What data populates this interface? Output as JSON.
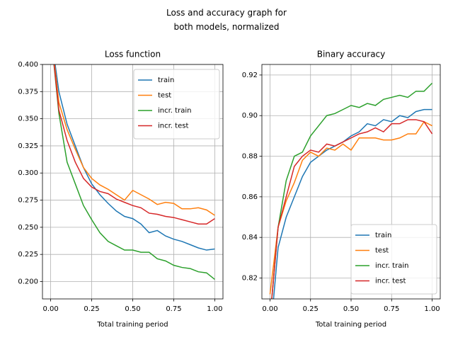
{
  "title": "Loss and accuracy graph for\nboth models, normalized",
  "chart_data": [
    {
      "type": "line",
      "title": "Loss function",
      "xlabel": "Total training period",
      "x": [
        0,
        0.05,
        0.1,
        0.15,
        0.2,
        0.25,
        0.3,
        0.35,
        0.4,
        0.45,
        0.5,
        0.55,
        0.6,
        0.65,
        0.7,
        0.75,
        0.8,
        0.85,
        0.9,
        0.95,
        1.0
      ],
      "xlim": [
        -0.05,
        1.05
      ],
      "xticks": [
        {
          "value": 0,
          "label": "0.00"
        },
        {
          "value": 0.25,
          "label": "0.25"
        },
        {
          "value": 0.5,
          "label": "0.50"
        },
        {
          "value": 0.75,
          "label": "0.75"
        },
        {
          "value": 1,
          "label": "1.00"
        }
      ],
      "ylim": [
        0.184,
        0.4
      ],
      "yticks": [
        {
          "value": 0.2,
          "label": "0.200"
        },
        {
          "value": 0.225,
          "label": "0.225"
        },
        {
          "value": 0.25,
          "label": "0.250"
        },
        {
          "value": 0.275,
          "label": "0.275"
        },
        {
          "value": 0.3,
          "label": "0.300"
        },
        {
          "value": 0.325,
          "label": "0.325"
        },
        {
          "value": 0.35,
          "label": "0.350"
        },
        {
          "value": 0.375,
          "label": "0.375"
        },
        {
          "value": 0.4,
          "label": "0.400"
        }
      ],
      "grid": true,
      "legend": "upper right",
      "series": [
        {
          "name": "train",
          "color": "#1f77b4",
          "values": [
            0.43,
            0.375,
            0.345,
            0.325,
            0.305,
            0.29,
            0.28,
            0.272,
            0.265,
            0.26,
            0.258,
            0.253,
            0.245,
            0.247,
            0.242,
            0.239,
            0.237,
            0.234,
            0.231,
            0.229,
            0.23
          ]
        },
        {
          "name": "test",
          "color": "#ff7f0e",
          "values": [
            0.43,
            0.365,
            0.34,
            0.322,
            0.305,
            0.295,
            0.289,
            0.285,
            0.28,
            0.275,
            0.284,
            0.28,
            0.276,
            0.271,
            0.273,
            0.272,
            0.267,
            0.267,
            0.268,
            0.266,
            0.261
          ]
        },
        {
          "name": "incr. train",
          "color": "#2ca02c",
          "values": [
            0.43,
            0.355,
            0.31,
            0.29,
            0.27,
            0.257,
            0.245,
            0.237,
            0.233,
            0.229,
            0.229,
            0.227,
            0.227,
            0.221,
            0.219,
            0.215,
            0.213,
            0.212,
            0.209,
            0.208,
            0.202
          ]
        },
        {
          "name": "incr. test",
          "color": "#d62728",
          "values": [
            0.43,
            0.358,
            0.33,
            0.31,
            0.295,
            0.287,
            0.283,
            0.281,
            0.276,
            0.273,
            0.27,
            0.268,
            0.263,
            0.262,
            0.26,
            0.259,
            0.257,
            0.255,
            0.253,
            0.253,
            0.258
          ]
        }
      ]
    },
    {
      "type": "line",
      "title": "Binary accuracy",
      "xlabel": "Total training period",
      "x": [
        0,
        0.05,
        0.1,
        0.15,
        0.2,
        0.25,
        0.3,
        0.35,
        0.4,
        0.45,
        0.5,
        0.55,
        0.6,
        0.65,
        0.7,
        0.75,
        0.8,
        0.85,
        0.9,
        0.95,
        1.0
      ],
      "xlim": [
        -0.05,
        1.05
      ],
      "xticks": [
        {
          "value": 0,
          "label": "0.00"
        },
        {
          "value": 0.25,
          "label": "0.25"
        },
        {
          "value": 0.5,
          "label": "0.50"
        },
        {
          "value": 0.75,
          "label": "0.75"
        },
        {
          "value": 1,
          "label": "1.00"
        }
      ],
      "ylim": [
        0.8097,
        0.9252
      ],
      "yticks": [
        0.82,
        0.84,
        0.86,
        0.88,
        {
          "value": 0.9,
          "label": "0.90"
        },
        0.92
      ],
      "grid": true,
      "legend": "lower right",
      "series": [
        {
          "name": "train",
          "color": "#1f77b4",
          "values": [
            0.79,
            0.835,
            0.85,
            0.86,
            0.87,
            0.877,
            0.88,
            0.883,
            0.885,
            0.887,
            0.89,
            0.892,
            0.896,
            0.895,
            0.898,
            0.897,
            0.9,
            0.899,
            0.902,
            0.903,
            0.903
          ]
        },
        {
          "name": "test",
          "color": "#ff7f0e",
          "values": [
            0.812,
            0.845,
            0.858,
            0.867,
            0.878,
            0.882,
            0.88,
            0.884,
            0.883,
            0.886,
            0.883,
            0.889,
            0.889,
            0.889,
            0.888,
            0.888,
            0.889,
            0.891,
            0.891,
            0.897,
            0.895
          ]
        },
        {
          "name": "incr. train",
          "color": "#2ca02c",
          "values": [
            0.8,
            0.845,
            0.868,
            0.88,
            0.882,
            0.89,
            0.895,
            0.9,
            0.901,
            0.903,
            0.905,
            0.904,
            0.906,
            0.905,
            0.908,
            0.909,
            0.91,
            0.909,
            0.912,
            0.912,
            0.916
          ]
        },
        {
          "name": "incr. test",
          "color": "#d62728",
          "values": [
            0.8,
            0.845,
            0.86,
            0.875,
            0.88,
            0.883,
            0.882,
            0.886,
            0.885,
            0.887,
            0.889,
            0.891,
            0.892,
            0.894,
            0.892,
            0.896,
            0.896,
            0.898,
            0.898,
            0.897,
            0.891
          ]
        }
      ]
    }
  ]
}
